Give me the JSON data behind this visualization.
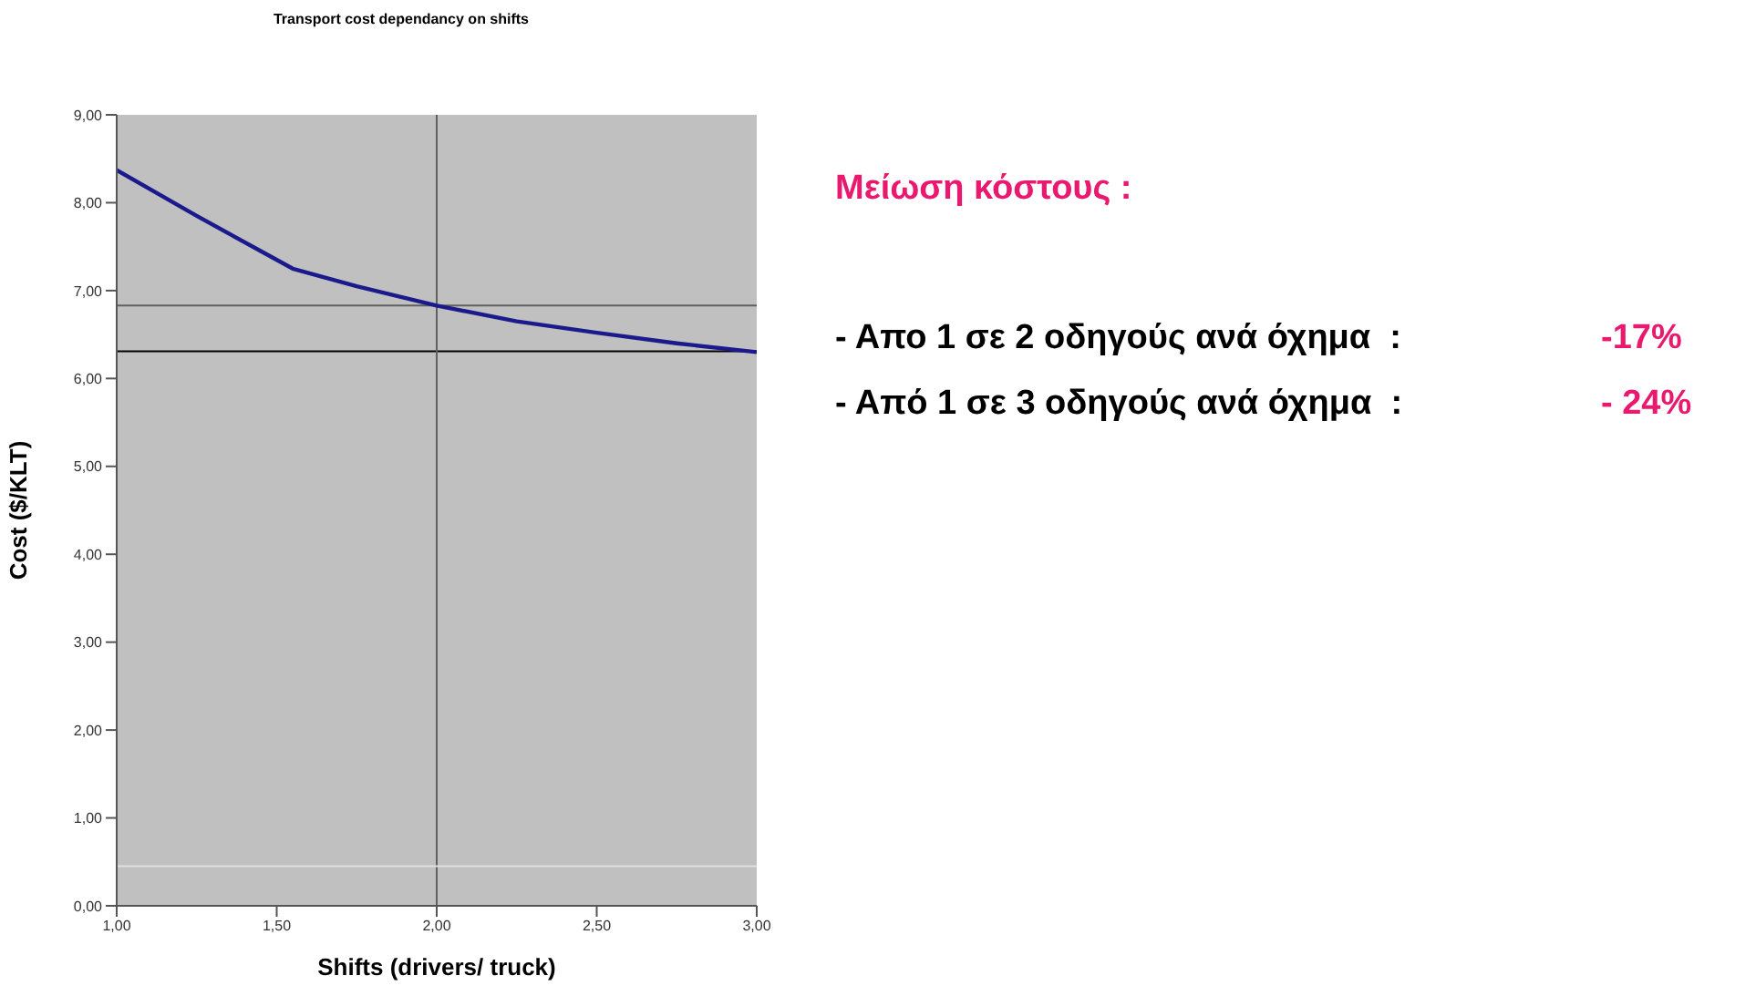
{
  "chart_data": {
    "type": "line",
    "title": "Transport cost dependancy on shifts",
    "xlabel": "Shifts (drivers/ truck)",
    "ylabel": "Cost  ($/KLT)",
    "x": [
      1,
      1.25,
      1.45,
      1.55,
      1.75,
      2,
      2.25,
      2.5,
      2.75,
      3
    ],
    "series": [
      {
        "color": "#1a1a8c",
        "values": [
          8.37,
          7.85,
          7.45,
          7.25,
          7.05,
          6.83,
          6.65,
          6.52,
          6.4,
          6.3
        ]
      }
    ],
    "marker": "none",
    "line_style": "solid",
    "xlim": [
      1,
      3
    ],
    "xticks": [
      {
        "value": 1,
        "label": "1,00"
      },
      {
        "value": 1.5,
        "label": "1,50"
      },
      {
        "value": 2,
        "label": "2,00"
      },
      {
        "value": 2.5,
        "label": "2,50"
      },
      {
        "value": 3,
        "label": "3,00"
      }
    ],
    "ylim": [
      0,
      9
    ],
    "yticks": [
      {
        "value": 0,
        "label": "0,00"
      },
      {
        "value": 1,
        "label": "1,00"
      },
      {
        "value": 2,
        "label": "2,00"
      },
      {
        "value": 3,
        "label": "3,00"
      },
      {
        "value": 4,
        "label": "4,00"
      },
      {
        "value": 5,
        "label": "5,00"
      },
      {
        "value": 6,
        "label": "6,00"
      },
      {
        "value": 7,
        "label": "7,00"
      },
      {
        "value": 8,
        "label": "8,00"
      },
      {
        "value": 9,
        "label": "9,00"
      }
    ],
    "ref_lines": [
      {
        "axis": "y",
        "value": 6.83,
        "color": "#606060"
      },
      {
        "axis": "y",
        "value": 6.31,
        "color": "#000000"
      },
      {
        "axis": "x",
        "value": 2,
        "color": "#606060"
      },
      {
        "axis": "y",
        "value": 0.45,
        "color": "#e0e0e0"
      }
    ],
    "annotations": [
      "Μείωση κόστους :",
      "- Απο 1 σε 2 οδηγούς ανά όχημα  :",
      "-17%",
      "- Από 1 σε 3 οδηγούς ανά όχημα  :",
      "- 24%"
    ]
  }
}
